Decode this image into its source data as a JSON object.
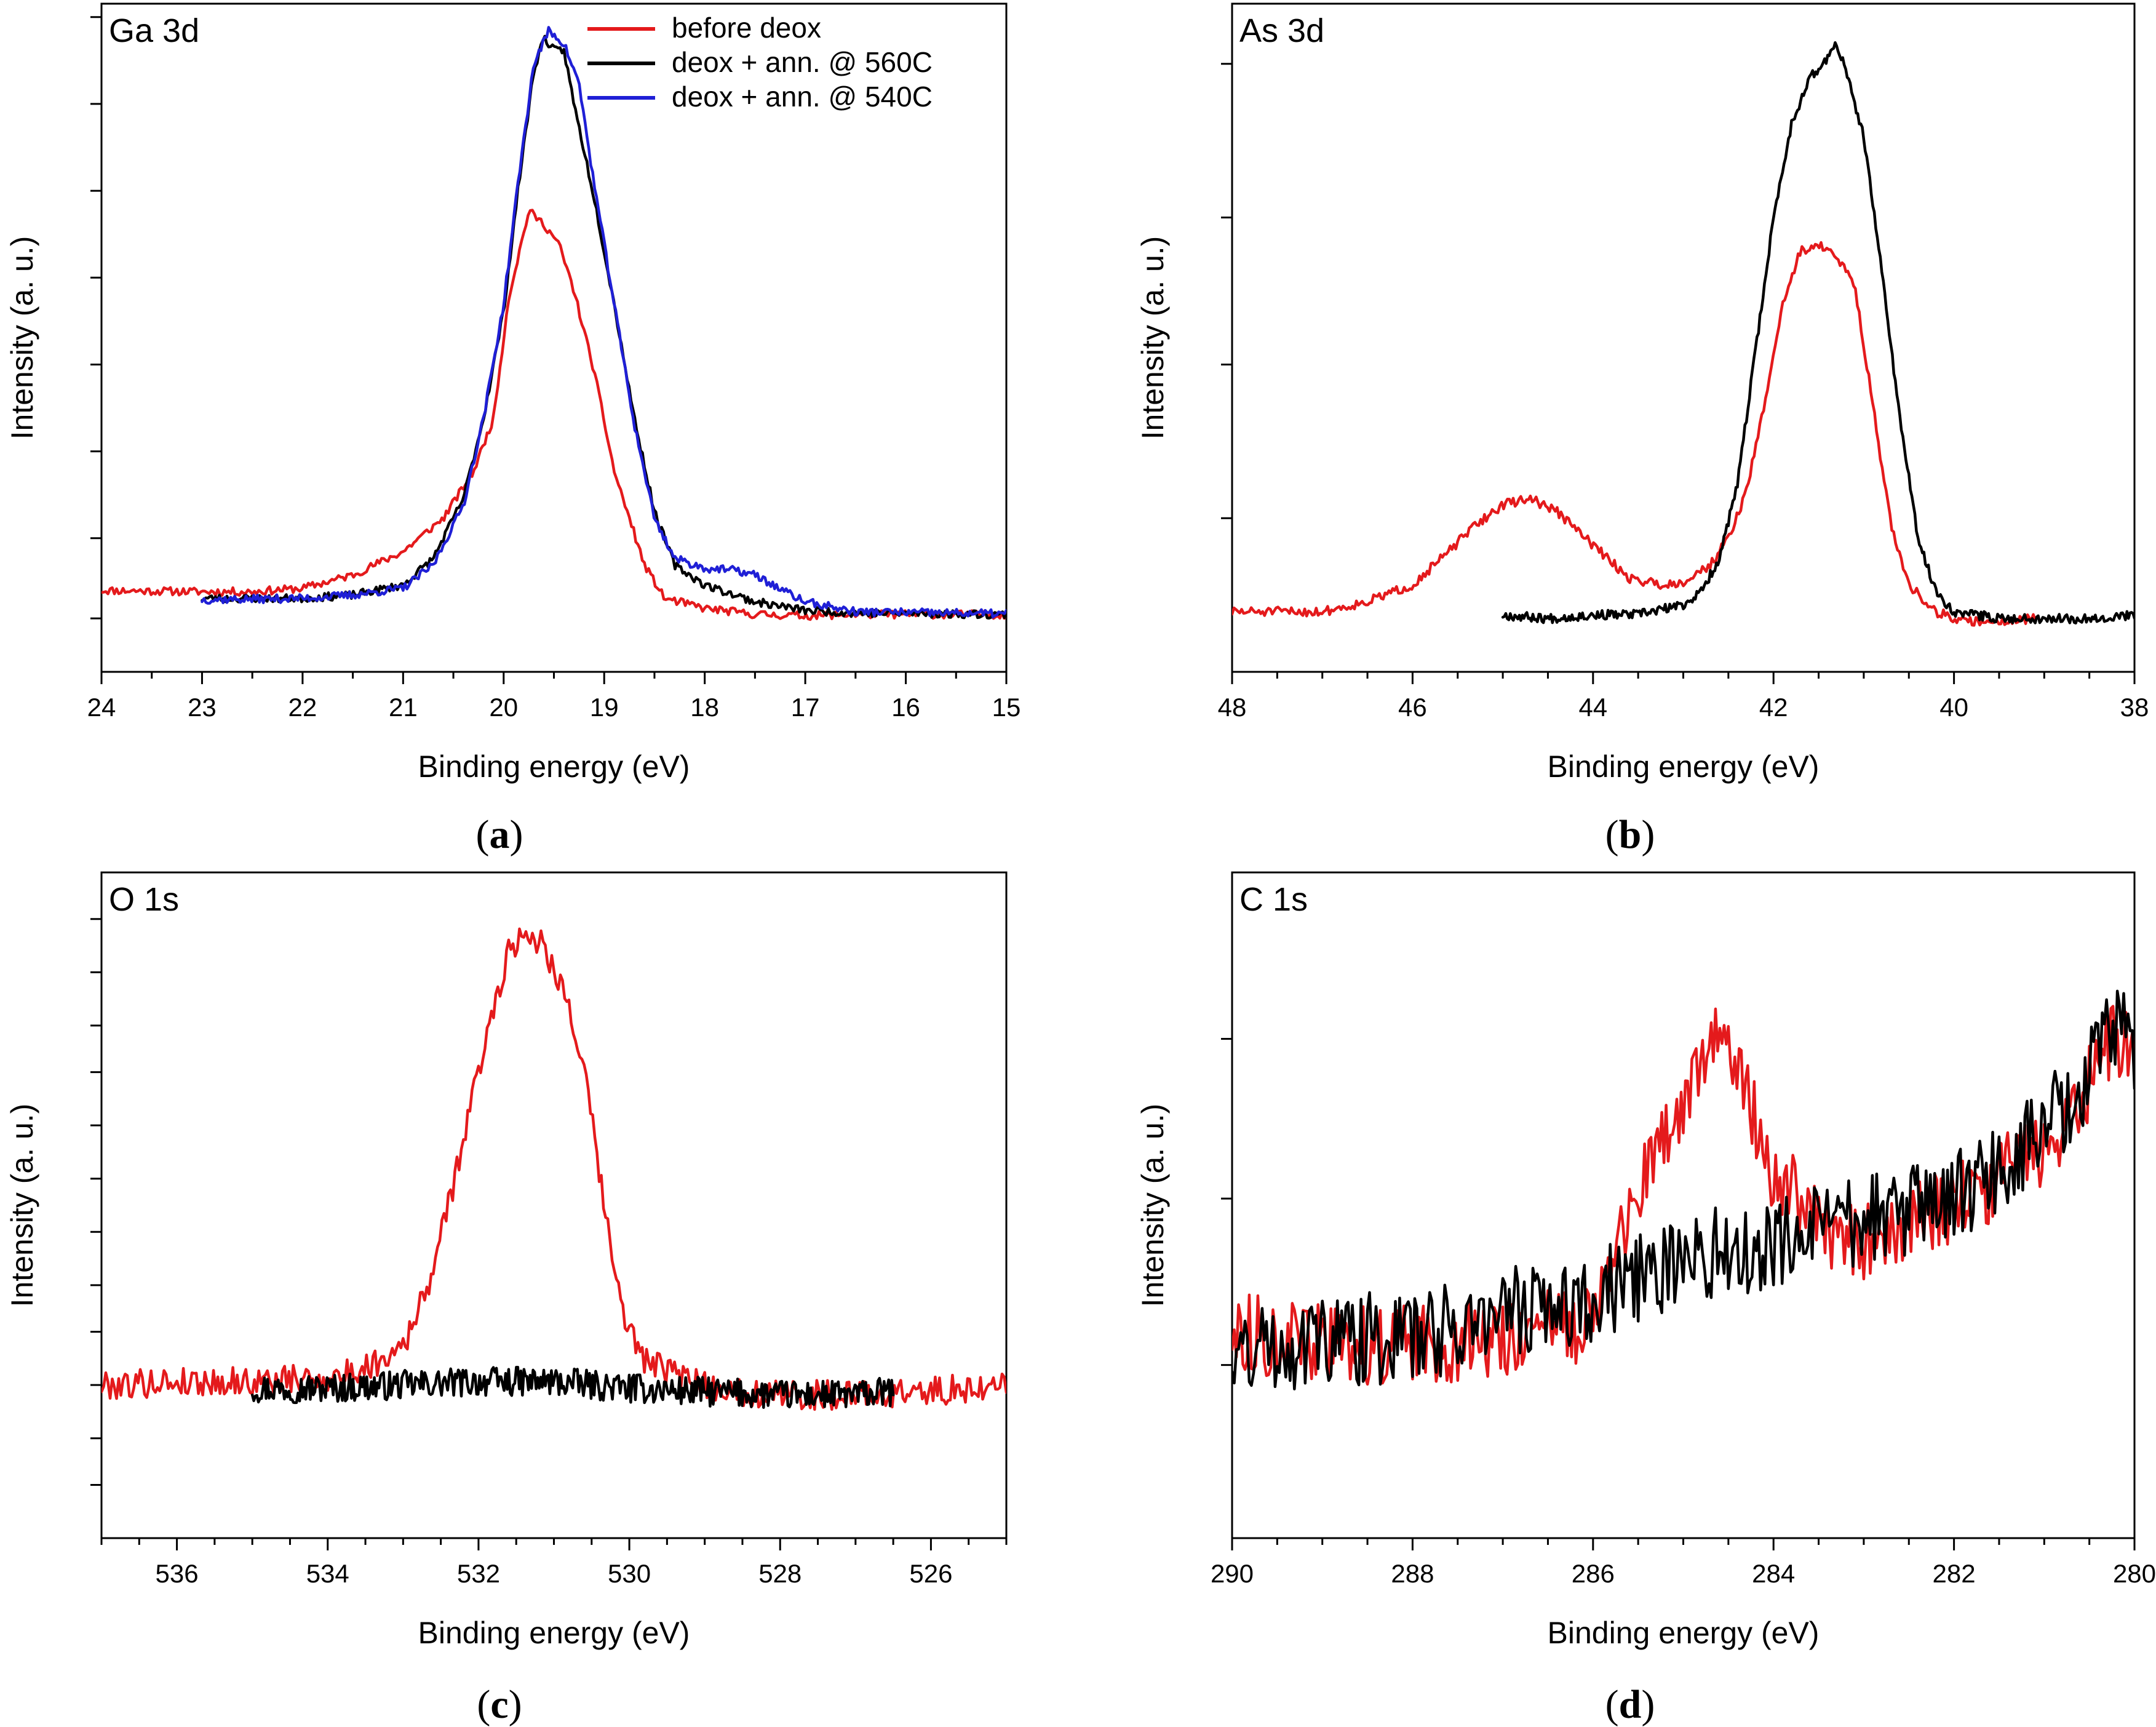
{
  "colors": {
    "red": "#e41a1c",
    "black": "#000000",
    "blue": "#1f1fd6"
  },
  "chart_data": [
    {
      "panel": "a",
      "type": "line",
      "title": "Ga 3d",
      "caption": {
        "letter": "a",
        "open": "(",
        "close": ")"
      },
      "xlabel": "Binding energy (eV)",
      "ylabel": "Intensity (a. u.)",
      "xlim": [
        24,
        15
      ],
      "ylim": [
        0,
        100
      ],
      "xticks": [
        24,
        23,
        22,
        21,
        20,
        19,
        18,
        17,
        16,
        15
      ],
      "x_minor_step": 0.5,
      "yticks": [
        8,
        20,
        33,
        46,
        59,
        72,
        85,
        98
      ],
      "legend": {
        "position": "top-right",
        "items": [
          {
            "label": "before deox",
            "color": "#e41a1c"
          },
          {
            "label": "deox + ann. @ 560C",
            "color": "#000000"
          },
          {
            "label": "deox + ann. @ 540C",
            "color": "#1f1fd6"
          }
        ]
      },
      "series": [
        {
          "name": "before deox",
          "color": "#e41a1c",
          "noise": 0.6,
          "seed": 11,
          "points": [
            [
              24,
              12.2
            ],
            [
              23,
              12
            ],
            [
              22.5,
              12
            ],
            [
              22,
              12.5
            ],
            [
              21.5,
              14.5
            ],
            [
              21,
              18
            ],
            [
              20.6,
              23
            ],
            [
              20.3,
              30
            ],
            [
              20.1,
              38
            ],
            [
              19.95,
              56
            ],
            [
              19.75,
              69
            ],
            [
              19.6,
              67
            ],
            [
              19.45,
              64
            ],
            [
              19.3,
              57
            ],
            [
              19.1,
              45
            ],
            [
              18.9,
              30
            ],
            [
              18.6,
              16
            ],
            [
              18.4,
              11
            ],
            [
              18,
              9.5
            ],
            [
              17.5,
              8.6
            ],
            [
              17,
              8.4
            ],
            [
              16.5,
              8.6
            ],
            [
              15,
              8.6
            ]
          ]
        },
        {
          "name": "deox + ann. @ 560C",
          "color": "#000000",
          "noise": 0.6,
          "seed": 23,
          "points": [
            [
              23,
              11
            ],
            [
              22,
              11
            ],
            [
              21.5,
              11.5
            ],
            [
              21,
              13
            ],
            [
              20.7,
              17
            ],
            [
              20.4,
              26
            ],
            [
              20.2,
              38
            ],
            [
              20,
              54
            ],
            [
              19.85,
              73
            ],
            [
              19.7,
              90
            ],
            [
              19.6,
              95
            ],
            [
              19.5,
              93
            ],
            [
              19.4,
              93
            ],
            [
              19.3,
              85
            ],
            [
              19.1,
              71
            ],
            [
              18.9,
              55
            ],
            [
              18.7,
              38
            ],
            [
              18.5,
              24
            ],
            [
              18.3,
              16
            ],
            [
              18,
              13
            ],
            [
              17.5,
              10.5
            ],
            [
              17,
              9.2
            ],
            [
              16.5,
              8.8
            ],
            [
              15,
              8.6
            ]
          ]
        },
        {
          "name": "deox + ann. @ 540C",
          "color": "#1f1fd6",
          "noise": 0.6,
          "seed": 37,
          "points": [
            [
              23,
              10.8
            ],
            [
              22,
              11
            ],
            [
              21.5,
              11.5
            ],
            [
              21,
              12.5
            ],
            [
              20.7,
              16
            ],
            [
              20.4,
              25
            ],
            [
              20.2,
              38
            ],
            [
              20,
              55
            ],
            [
              19.85,
              74
            ],
            [
              19.7,
              91
            ],
            [
              19.55,
              96
            ],
            [
              19.4,
              94
            ],
            [
              19.25,
              88
            ],
            [
              19.1,
              73
            ],
            [
              18.9,
              55
            ],
            [
              18.7,
              37
            ],
            [
              18.5,
              23
            ],
            [
              18.3,
              17
            ],
            [
              18,
              15.5
            ],
            [
              17.7,
              15.2
            ],
            [
              17.5,
              14.5
            ],
            [
              17.2,
              12
            ],
            [
              17,
              10.5
            ],
            [
              16.5,
              9
            ],
            [
              15,
              8.7
            ]
          ]
        }
      ]
    },
    {
      "panel": "b",
      "type": "line",
      "title": "As 3d",
      "caption": {
        "letter": "b",
        "open": "(",
        "close": ")"
      },
      "xlabel": "Binding energy (eV)",
      "ylabel": "Intensity (a. u.)",
      "xlim": [
        48,
        38
      ],
      "ylim": [
        0,
        100
      ],
      "xticks": [
        48,
        46,
        44,
        42,
        40,
        38
      ],
      "x_minor_step": 0.5,
      "yticks": [
        23,
        46,
        68,
        91
      ],
      "legend": null,
      "series": [
        {
          "name": "before deox",
          "color": "#e41a1c",
          "noise": 0.7,
          "seed": 51,
          "points": [
            [
              48,
              9
            ],
            [
              47,
              9
            ],
            [
              46.5,
              10.5
            ],
            [
              46,
              13
            ],
            [
              45.6,
              18
            ],
            [
              45.3,
              22
            ],
            [
              45,
              25
            ],
            [
              44.7,
              26
            ],
            [
              44.4,
              24
            ],
            [
              44,
              19
            ],
            [
              43.6,
              14
            ],
            [
              43.2,
              13
            ],
            [
              43,
              13.5
            ],
            [
              42.7,
              16
            ],
            [
              42.5,
              20
            ],
            [
              42.3,
              27
            ],
            [
              42.1,
              40
            ],
            [
              41.9,
              55
            ],
            [
              41.7,
              63
            ],
            [
              41.5,
              64
            ],
            [
              41.3,
              62
            ],
            [
              41.1,
              58
            ],
            [
              40.9,
              40
            ],
            [
              40.7,
              22
            ],
            [
              40.5,
              13
            ],
            [
              40.2,
              9
            ],
            [
              39.9,
              7.5
            ],
            [
              39.5,
              7.6
            ],
            [
              39.1,
              8
            ]
          ]
        },
        {
          "name": "deox + ann. @ 560C",
          "color": "#000000",
          "noise": 0.7,
          "seed": 67,
          "points": [
            [
              45,
              8.5
            ],
            [
              44.5,
              8
            ],
            [
              44,
              8.5
            ],
            [
              43.5,
              8.6
            ],
            [
              43,
              10
            ],
            [
              42.8,
              12
            ],
            [
              42.6,
              17
            ],
            [
              42.4,
              28
            ],
            [
              42.2,
              48
            ],
            [
              42,
              68
            ],
            [
              41.8,
              82
            ],
            [
              41.6,
              89
            ],
            [
              41.5,
              90
            ],
            [
              41.3,
              94
            ],
            [
              41.2,
              90
            ],
            [
              41,
              80
            ],
            [
              40.8,
              60
            ],
            [
              40.6,
              38
            ],
            [
              40.4,
              20
            ],
            [
              40.2,
              12
            ],
            [
              40,
              9
            ],
            [
              39.5,
              8
            ],
            [
              39,
              8
            ],
            [
              38.5,
              8
            ],
            [
              38,
              8.5
            ]
          ]
        }
      ]
    },
    {
      "panel": "c",
      "type": "line",
      "title": "O 1s",
      "caption": {
        "letter": "c",
        "open": "(",
        "close": ")"
      },
      "xlabel": "Binding energy (eV)",
      "ylabel": "Intensity (a. u.)",
      "xlim": [
        537,
        525
      ],
      "ylim": [
        0,
        100
      ],
      "xticks": [
        536,
        534,
        532,
        530,
        528,
        526
      ],
      "x_minor_step": 0.5,
      "yticks": [
        8,
        15,
        23,
        31,
        38,
        46,
        54,
        62,
        70,
        77,
        85,
        93
      ],
      "legend": null,
      "series": [
        {
          "name": "before deox",
          "color": "#e41a1c",
          "noise": 2.2,
          "seed": 79,
          "points": [
            [
              537,
              23
            ],
            [
              536,
              23.5
            ],
            [
              535,
              23.5
            ],
            [
              534,
              24
            ],
            [
              533.6,
              25
            ],
            [
              533.2,
              27.5
            ],
            [
              532.9,
              31
            ],
            [
              532.7,
              37
            ],
            [
              532.5,
              45
            ],
            [
              532.3,
              55
            ],
            [
              532,
              70
            ],
            [
              531.8,
              80
            ],
            [
              531.6,
              88
            ],
            [
              531.4,
              91
            ],
            [
              531.2,
              90
            ],
            [
              531,
              86
            ],
            [
              530.8,
              80
            ],
            [
              530.6,
              70
            ],
            [
              530.4,
              55
            ],
            [
              530.2,
              40
            ],
            [
              530,
              31
            ],
            [
              529.8,
              27
            ],
            [
              529.5,
              25
            ],
            [
              529,
              23
            ],
            [
              528.5,
              22
            ],
            [
              528,
              21.5
            ],
            [
              527,
              21.5
            ],
            [
              526,
              22
            ],
            [
              525,
              23
            ]
          ]
        },
        {
          "name": "deox + ann. @ 560C",
          "color": "#000000",
          "noise": 2.2,
          "seed": 97,
          "points": [
            [
              535,
              22.5
            ],
            [
              534,
              22.5
            ],
            [
              533,
              23
            ],
            [
              532,
              23.5
            ],
            [
              531,
              23.5
            ],
            [
              530,
              22.5
            ],
            [
              529,
              22
            ],
            [
              528,
              21.5
            ],
            [
              527,
              21.5
            ],
            [
              526.5,
              22
            ]
          ]
        }
      ]
    },
    {
      "panel": "d",
      "type": "line",
      "title": "C 1s",
      "caption": {
        "letter": "d",
        "open": "(",
        "close": ")"
      },
      "xlabel": "Binding energy (eV)",
      "ylabel": "Intensity (a. u.)",
      "xlim": [
        290,
        280
      ],
      "ylim": [
        0,
        100
      ],
      "xticks": [
        290,
        288,
        286,
        284,
        282,
        280
      ],
      "x_minor_step": 0.5,
      "yticks": [
        26,
        51,
        75
      ],
      "legend": null,
      "series": [
        {
          "name": "before deox",
          "color": "#e41a1c",
          "noise": 6,
          "seed": 113,
          "points": [
            [
              290,
              31
            ],
            [
              289,
              29
            ],
            [
              288,
              29
            ],
            [
              287,
              30
            ],
            [
              286.2,
              32
            ],
            [
              285.8,
              40
            ],
            [
              285.5,
              52
            ],
            [
              285.2,
              60
            ],
            [
              285,
              64
            ],
            [
              284.8,
              72
            ],
            [
              284.6,
              75
            ],
            [
              284.4,
              72
            ],
            [
              284.2,
              63
            ],
            [
              284,
              55
            ],
            [
              283.5,
              47
            ],
            [
              283,
              44
            ],
            [
              282.5,
              47
            ],
            [
              282,
              50
            ],
            [
              281.5,
              54
            ],
            [
              281,
              59
            ],
            [
              280.6,
              66
            ],
            [
              280.3,
              74
            ],
            [
              280,
              74
            ]
          ]
        },
        {
          "name": "deox + ann. @ 560C",
          "color": "#000000",
          "noise": 7,
          "seed": 131,
          "points": [
            [
              290,
              28
            ],
            [
              289,
              30
            ],
            [
              288,
              30
            ],
            [
              287,
              34
            ],
            [
              286,
              36
            ],
            [
              285.5,
              39
            ],
            [
              285,
              42
            ],
            [
              284,
              44
            ],
            [
              283,
              48
            ],
            [
              282,
              51
            ],
            [
              281.5,
              55
            ],
            [
              281,
              62
            ],
            [
              280.6,
              67
            ],
            [
              280.3,
              75
            ],
            [
              280.1,
              80
            ],
            [
              280,
              70
            ]
          ]
        }
      ]
    }
  ]
}
